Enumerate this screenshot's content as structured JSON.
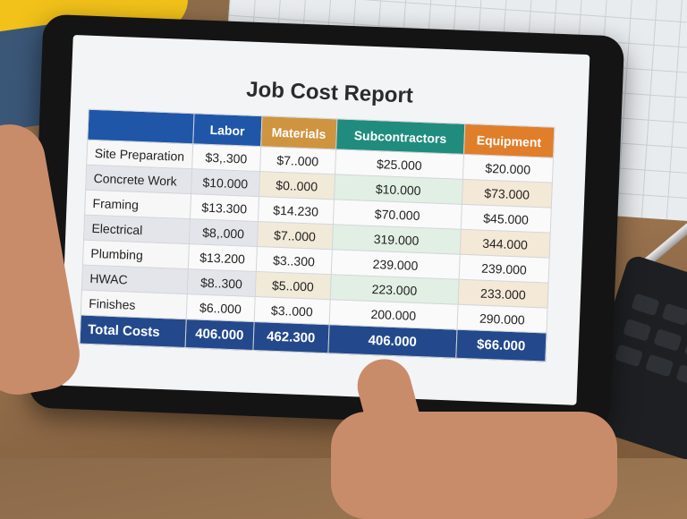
{
  "report": {
    "title": "Job Cost Report",
    "columns": [
      "",
      "Labor",
      "Materials",
      "Subcontractors",
      "Equipment"
    ],
    "header_colors": [
      "#1f56a8",
      "#1f56a8",
      "#cf9440",
      "#1f8c7e",
      "#e07e2a"
    ],
    "rows": [
      {
        "label": "Site Preparation",
        "values": [
          "$3,.300",
          "$7..000",
          "$25.000",
          "$20.000"
        ]
      },
      {
        "label": "Concrete Work",
        "values": [
          "$10.000",
          "$0..000",
          "$10.000",
          "$73.000"
        ]
      },
      {
        "label": "Framing",
        "values": [
          "$13.300",
          "$14.230",
          "$70.000",
          "$45.000"
        ]
      },
      {
        "label": "Electrical",
        "values": [
          "$8,.000",
          "$7..000",
          "319.000",
          "344.000"
        ]
      },
      {
        "label": "Plumbing",
        "values": [
          "$13.200",
          "$3..300",
          "239.000",
          "239.000"
        ]
      },
      {
        "label": "HWAC",
        "values": [
          "$8..300",
          "$5..000",
          "223.000",
          "233.000"
        ]
      },
      {
        "label": "Finishes",
        "values": [
          "$6..000",
          "$3..000",
          "200.000",
          "290.000"
        ]
      }
    ],
    "total": {
      "label": "Total Costs",
      "values": [
        "406.000",
        "462.300",
        "406.000",
        "$66.000"
      ]
    }
  }
}
